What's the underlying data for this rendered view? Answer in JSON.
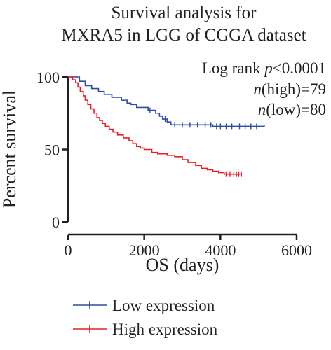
{
  "chart_data": {
    "type": "line",
    "title_lines": [
      "Survival analysis for",
      "MXRA5 in LGG of CGGA dataset"
    ],
    "xlabel": "OS (days)",
    "ylabel": "Percent survival",
    "xlim": [
      0,
      6000
    ],
    "ylim": [
      0,
      100
    ],
    "x_ticks": [
      "0",
      "2000",
      "4000",
      "6000"
    ],
    "y_ticks": [
      "0",
      "50",
      "100"
    ],
    "x_tick_values": [
      0,
      2000,
      4000,
      6000
    ],
    "y_tick_values": [
      0,
      50,
      100
    ],
    "grid": false,
    "annotations": [
      {
        "prefix": "Log rank ",
        "italic": "p",
        "suffix": "<0.0001"
      },
      {
        "prefix": "",
        "italic": "n",
        "suffix": "(high)=79"
      },
      {
        "prefix": "",
        "italic": "n",
        "suffix": "(low)=80"
      }
    ],
    "legend_position": "bottom",
    "series": [
      {
        "name": "Low expression",
        "color": "#2e4d9e",
        "step_points": [
          [
            0,
            100
          ],
          [
            300,
            100
          ],
          [
            300,
            97
          ],
          [
            450,
            97
          ],
          [
            450,
            94
          ],
          [
            620,
            94
          ],
          [
            620,
            92
          ],
          [
            800,
            92
          ],
          [
            800,
            90
          ],
          [
            950,
            90
          ],
          [
            950,
            88
          ],
          [
            1150,
            88
          ],
          [
            1150,
            86
          ],
          [
            1400,
            86
          ],
          [
            1400,
            84
          ],
          [
            1550,
            84
          ],
          [
            1550,
            82
          ],
          [
            1650,
            82
          ],
          [
            1650,
            81
          ],
          [
            1800,
            81
          ],
          [
            1800,
            79
          ],
          [
            2100,
            79
          ],
          [
            2100,
            77
          ],
          [
            2300,
            77
          ],
          [
            2300,
            75
          ],
          [
            2400,
            75
          ],
          [
            2400,
            73
          ],
          [
            2480,
            73
          ],
          [
            2480,
            71
          ],
          [
            2600,
            71
          ],
          [
            2600,
            69
          ],
          [
            2700,
            69
          ],
          [
            2700,
            67
          ],
          [
            3800,
            67
          ],
          [
            3800,
            66
          ],
          [
            5150,
            66
          ],
          [
            5150,
            67
          ]
        ],
        "censor_x": [
          2150,
          2550,
          2800,
          3000,
          3200,
          3400,
          3600,
          3750,
          3900,
          4000,
          4150,
          4300,
          4500,
          4650,
          4800,
          4950
        ]
      },
      {
        "name": "High expression",
        "color": "#e32028",
        "step_points": [
          [
            0,
            100
          ],
          [
            120,
            100
          ],
          [
            120,
            98
          ],
          [
            200,
            98
          ],
          [
            200,
            96
          ],
          [
            260,
            96
          ],
          [
            260,
            93
          ],
          [
            320,
            93
          ],
          [
            320,
            90
          ],
          [
            400,
            90
          ],
          [
            400,
            87
          ],
          [
            450,
            87
          ],
          [
            450,
            84
          ],
          [
            520,
            84
          ],
          [
            520,
            81
          ],
          [
            600,
            81
          ],
          [
            600,
            78
          ],
          [
            680,
            78
          ],
          [
            680,
            75
          ],
          [
            760,
            75
          ],
          [
            760,
            72
          ],
          [
            830,
            72
          ],
          [
            830,
            70
          ],
          [
            900,
            70
          ],
          [
            900,
            68
          ],
          [
            980,
            68
          ],
          [
            980,
            66
          ],
          [
            1080,
            66
          ],
          [
            1080,
            64
          ],
          [
            1180,
            64
          ],
          [
            1180,
            62
          ],
          [
            1300,
            62
          ],
          [
            1300,
            60
          ],
          [
            1450,
            60
          ],
          [
            1450,
            58
          ],
          [
            1600,
            58
          ],
          [
            1600,
            56
          ],
          [
            1700,
            56
          ],
          [
            1700,
            54
          ],
          [
            1800,
            54
          ],
          [
            1800,
            52
          ],
          [
            1900,
            52
          ],
          [
            1900,
            51
          ],
          [
            2000,
            51
          ],
          [
            2000,
            50
          ],
          [
            2200,
            50
          ],
          [
            2200,
            48
          ],
          [
            2350,
            48
          ],
          [
            2350,
            47
          ],
          [
            2600,
            47
          ],
          [
            2600,
            46
          ],
          [
            2800,
            46
          ],
          [
            2800,
            45
          ],
          [
            3000,
            45
          ],
          [
            3000,
            43
          ],
          [
            3150,
            43
          ],
          [
            3150,
            41
          ],
          [
            3350,
            41
          ],
          [
            3350,
            39
          ],
          [
            3500,
            39
          ],
          [
            3500,
            37
          ],
          [
            3650,
            37
          ],
          [
            3650,
            36
          ],
          [
            3800,
            36
          ],
          [
            3800,
            35
          ],
          [
            3950,
            35
          ],
          [
            3950,
            34
          ],
          [
            4100,
            34
          ],
          [
            4100,
            33
          ],
          [
            4550,
            33
          ]
        ],
        "censor_x": [
          4150,
          4250,
          4350,
          4420,
          4480,
          4550
        ]
      }
    ]
  }
}
